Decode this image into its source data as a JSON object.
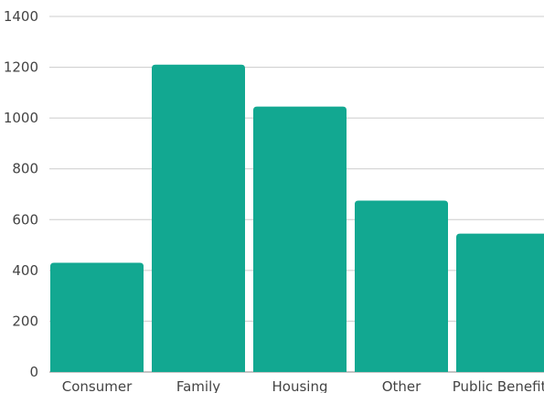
{
  "chart_data": {
    "type": "bar",
    "title": "",
    "xlabel": "",
    "ylabel": "",
    "categories": [
      "Consumer",
      "Family",
      "Housing",
      "Other",
      "Public Benefits"
    ],
    "values": [
      430,
      1210,
      1045,
      675,
      545
    ],
    "ylim": [
      0,
      1400
    ],
    "yticks": [
      "0",
      "200",
      "400",
      "600",
      "800",
      "1000",
      "1200",
      "1400"
    ],
    "grid": true,
    "legend": "none",
    "colors": {
      "bar": "#12a891",
      "grid": "#cccccc",
      "text": "#444444"
    }
  }
}
